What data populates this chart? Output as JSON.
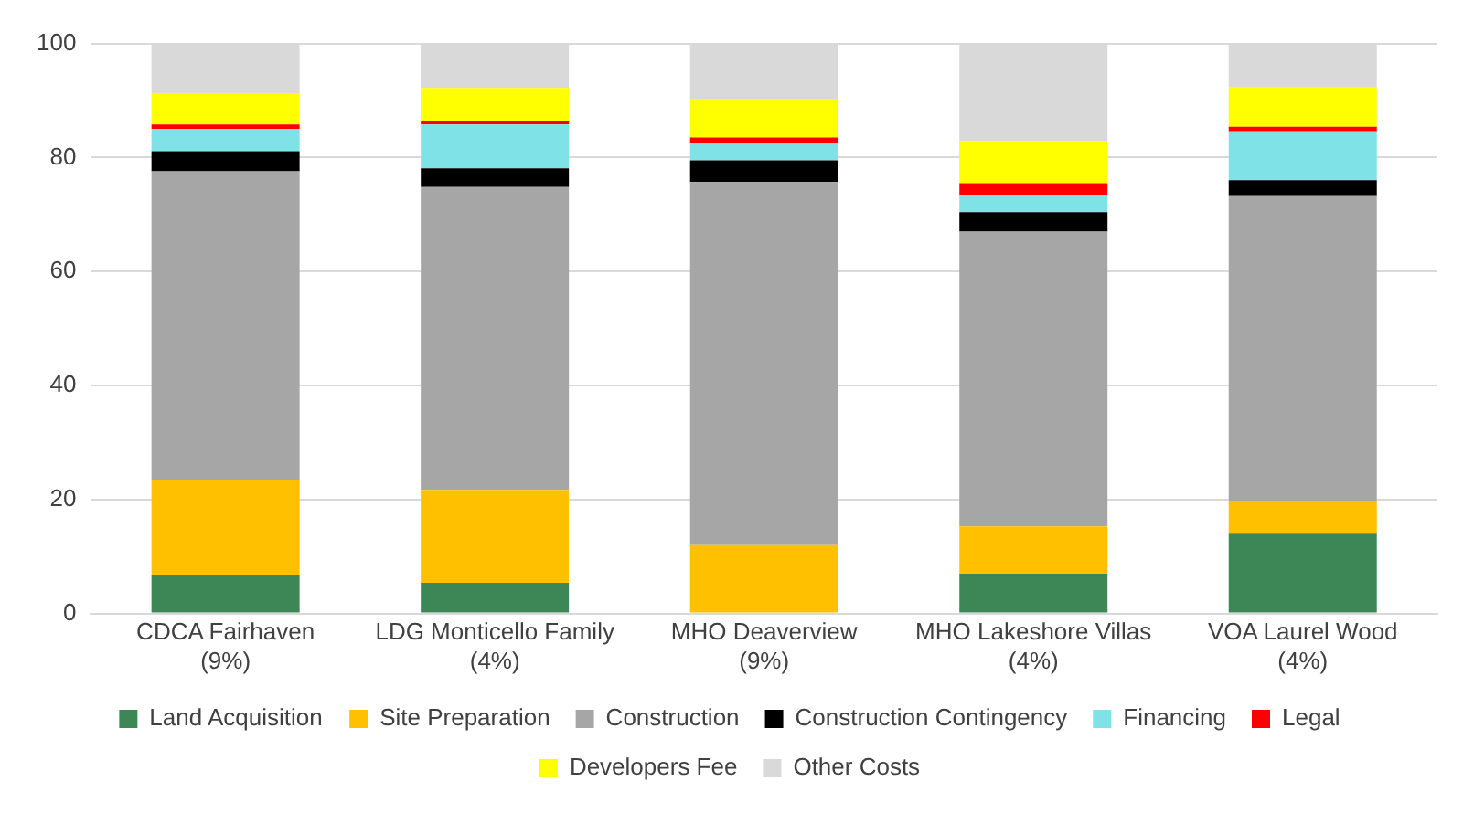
{
  "chart_data": {
    "type": "bar",
    "stacked": true,
    "categories": [
      "CDCA Fairhaven\n(9%)",
      "LDG Monticello Family\n(4%)",
      "MHO Deaverview\n(9%)",
      "MHO Lakeshore Villas\n(4%)",
      "VOA Laurel Wood\n(4%)"
    ],
    "series": [
      {
        "name": "Land Acquisition",
        "color": "#3d8756",
        "values": [
          6.7,
          5.4,
          0,
          7,
          14
        ]
      },
      {
        "name": "Site Preparation",
        "color": "#ffc000",
        "values": [
          16.7,
          16.3,
          12,
          8.3,
          5.7
        ]
      },
      {
        "name": "Construction",
        "color": "#a6a6a6",
        "values": [
          54.2,
          53.1,
          63.7,
          51.7,
          53.5
        ]
      },
      {
        "name": "Construction Contingency",
        "color": "#000000",
        "values": [
          3.5,
          3.3,
          3.8,
          3.4,
          2.8
        ]
      },
      {
        "name": "Financing",
        "color": "#7ee2e6",
        "values": [
          3.9,
          7.7,
          3.1,
          2.9,
          8.6
        ]
      },
      {
        "name": "Legal",
        "color": "#ff0000",
        "values": [
          0.8,
          0.6,
          0.9,
          2.2,
          0.8
        ]
      },
      {
        "name": "Developers Fee",
        "color": "#ffff00",
        "values": [
          5.5,
          5.8,
          6.7,
          7.4,
          6.9
        ]
      },
      {
        "name": "Other Costs",
        "color": "#d9d9d9",
        "values": [
          8.7,
          7.8,
          9.8,
          17.1,
          7.7
        ]
      }
    ],
    "ylim": [
      0,
      100
    ],
    "yticks": [
      0,
      20,
      40,
      60,
      80,
      100
    ],
    "grid": "y",
    "legend": "bottom"
  }
}
